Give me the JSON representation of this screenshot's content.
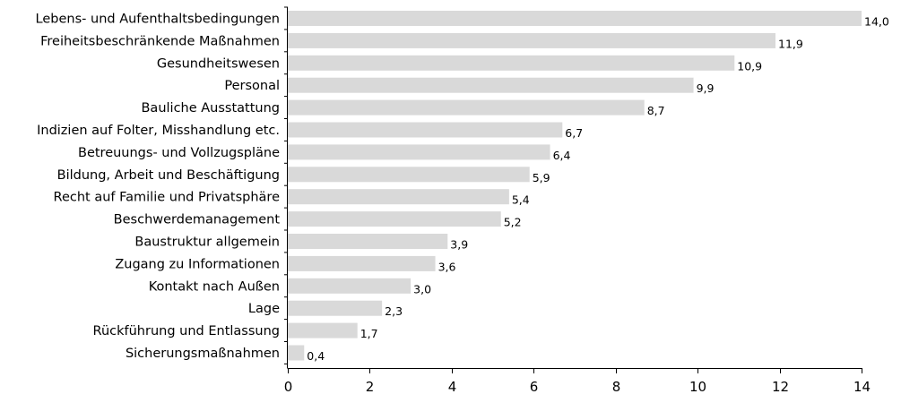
{
  "chart_data": {
    "type": "bar",
    "orientation": "horizontal",
    "categories": [
      "Lebens- und Aufenthaltsbedingungen",
      "Freiheitsbeschränkende Maßnahmen",
      "Gesundheitswesen",
      "Personal",
      "Bauliche Ausstattung",
      "Indizien auf Folter, Misshandlung etc.",
      "Betreuungs- und Vollzugspläne",
      "Bildung, Arbeit und Beschäftigung",
      "Recht auf Familie und Privatsphäre",
      "Beschwerdemanagement",
      "Baustruktur allgemein",
      "Zugang zu Informationen",
      "Kontakt nach Außen",
      "Lage",
      "Rückführung und Entlassung",
      "Sicherungsmaßnahmen"
    ],
    "values": [
      14.0,
      11.9,
      10.9,
      9.9,
      8.7,
      6.7,
      6.4,
      5.9,
      5.4,
      5.2,
      3.9,
      3.6,
      3.0,
      2.3,
      1.7,
      0.4
    ],
    "value_labels": [
      "14,0",
      "11,9",
      "10,9",
      "9,9",
      "8,7",
      "6,7",
      "6,4",
      "5,9",
      "5,4",
      "5,2",
      "3,9",
      "3,6",
      "3,0",
      "2,3",
      "1,7",
      "0,4"
    ],
    "xlim": [
      0,
      14
    ],
    "x_ticks": [
      0,
      2,
      4,
      6,
      8,
      10,
      12,
      14
    ],
    "x_tick_labels": [
      "0",
      "2",
      "4",
      "6",
      "8",
      "10",
      "12",
      "14"
    ],
    "title": "",
    "xlabel": "",
    "ylabel": "",
    "grid": false,
    "colors": {
      "bar": "#d9d9d9",
      "axis": "#000000"
    }
  }
}
